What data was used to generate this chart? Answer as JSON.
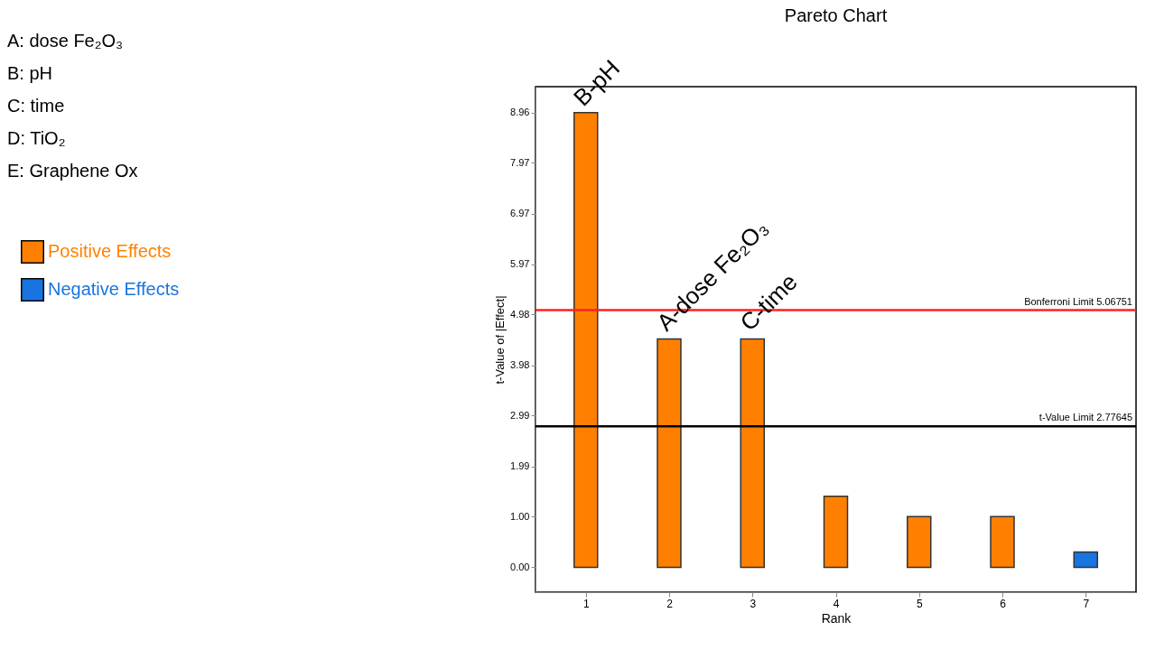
{
  "chart_data": {
    "type": "bar",
    "title": "Pareto Chart",
    "xlabel": "Rank",
    "ylabel": "t-Value of |Effect|",
    "categories": [
      "1",
      "2",
      "3",
      "4",
      "5",
      "6",
      "7"
    ],
    "series": [
      {
        "name": "Positive Effects",
        "color": "#ff8000",
        "values": [
          8.96,
          4.5,
          4.5,
          1.4,
          1.0,
          1.0,
          null
        ]
      },
      {
        "name": "Negative Effects",
        "color": "#1874e0",
        "values": [
          null,
          null,
          null,
          null,
          null,
          null,
          0.3
        ]
      }
    ],
    "ylim": [
      -0.49,
      9.47
    ],
    "yticks": [
      {
        "value": 0,
        "label": "0.00"
      },
      {
        "value": 1,
        "label": "1.00"
      },
      1.99,
      2.99,
      3.98,
      4.98,
      5.97,
      6.97,
      7.97,
      8.96
    ],
    "ref_lines": [
      {
        "axis": "y",
        "value": 5.06751,
        "label": "Bonferroni Limit 5.06751",
        "color": "#ff2020"
      },
      {
        "axis": "y",
        "value": 2.77645,
        "label": "t-Value Limit 2.77645",
        "color": "#000000"
      }
    ],
    "annotations": [
      "A: dose Fe₂O₃",
      "B: pH",
      "C: time",
      "D: TiO₂",
      "E: Graphene Ox",
      {
        "text": "B-pH",
        "x": "1",
        "y": 8.96
      },
      {
        "text": "A-dose Fe₂O₃",
        "x": "2",
        "y": 4.53
      },
      {
        "text": "C-time",
        "x": "3",
        "y": 4.53
      }
    ],
    "legend": "left",
    "grid": false
  }
}
